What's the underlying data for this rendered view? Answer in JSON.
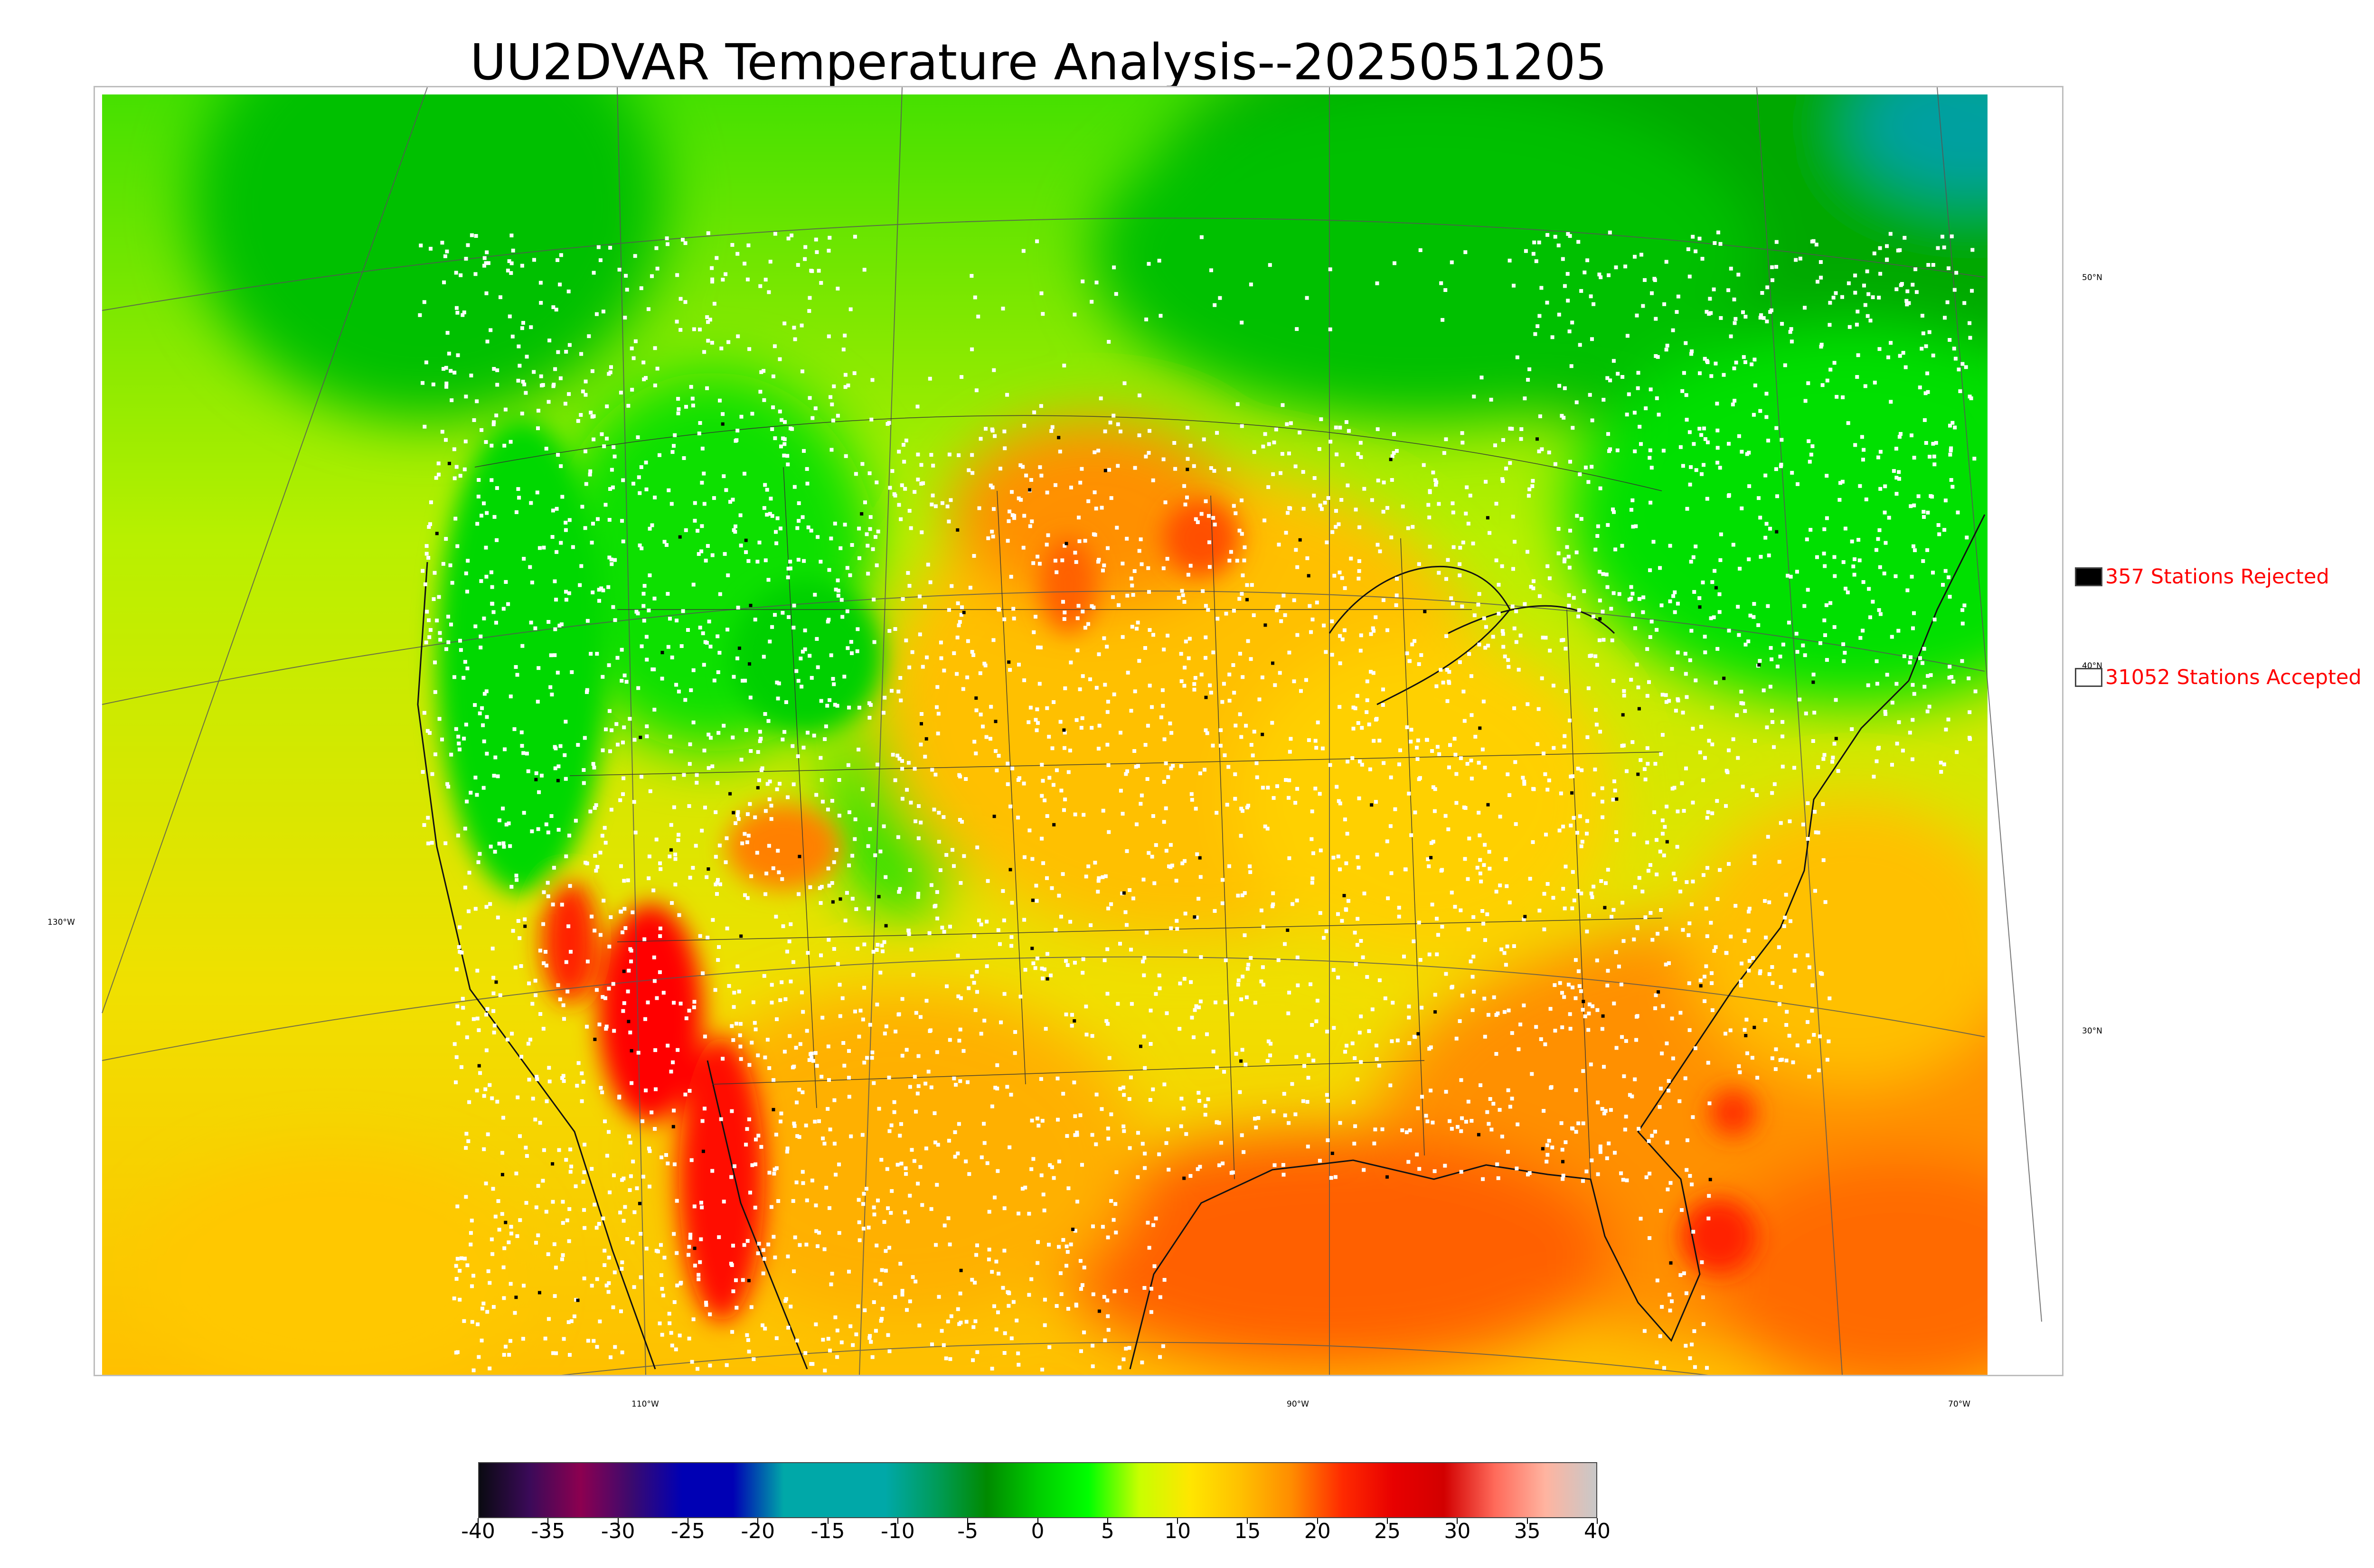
{
  "title": "UU2DVAR Temperature Analysis--2025051205",
  "map": {
    "latitude_labels": [
      "50°N",
      "40°N",
      "30°N"
    ],
    "longitude_labels": [
      "130°W",
      "110°W",
      "90°W",
      "70°W"
    ],
    "features": [
      "temperature-field",
      "coastlines",
      "state-borders",
      "country-borders",
      "graticule",
      "station-markers"
    ]
  },
  "legend": {
    "rejected": {
      "label": "357 Stations Rejected",
      "swatch_color": "#000000"
    },
    "accepted": {
      "label": "31052 Stations Accepted",
      "swatch_color": "#ffffff"
    }
  },
  "colorbar": {
    "ticks": [
      "-40",
      "-35",
      "-30",
      "-25",
      "-20",
      "-15",
      "-10",
      "-5",
      "0",
      "5",
      "10",
      "15",
      "20",
      "25",
      "30",
      "35",
      "40"
    ],
    "colors": [
      "#0a0a12",
      "#3b0a59",
      "#8c0050",
      "#3b0a6e",
      "#0000b4",
      "#0000b4",
      "#00a8a8",
      "#00a8a8",
      "#00a8a8",
      "#009c5a",
      "#008a00",
      "#00cc00",
      "#00ff00",
      "#c8ff00",
      "#ffe600",
      "#ffc000",
      "#ff8c00",
      "#ff2a00",
      "#e80000",
      "#d20000",
      "#ff6a5a",
      "#ffb4a0",
      "#c8c8c8"
    ]
  },
  "colors": {
    "cold_green": "#00c800",
    "dark_green": "#009600",
    "yellow": "#f0e600",
    "orange": "#ffaa00",
    "red": "#ff0000",
    "teal": "#00a0a0",
    "legend_text": "#ff0000"
  }
}
